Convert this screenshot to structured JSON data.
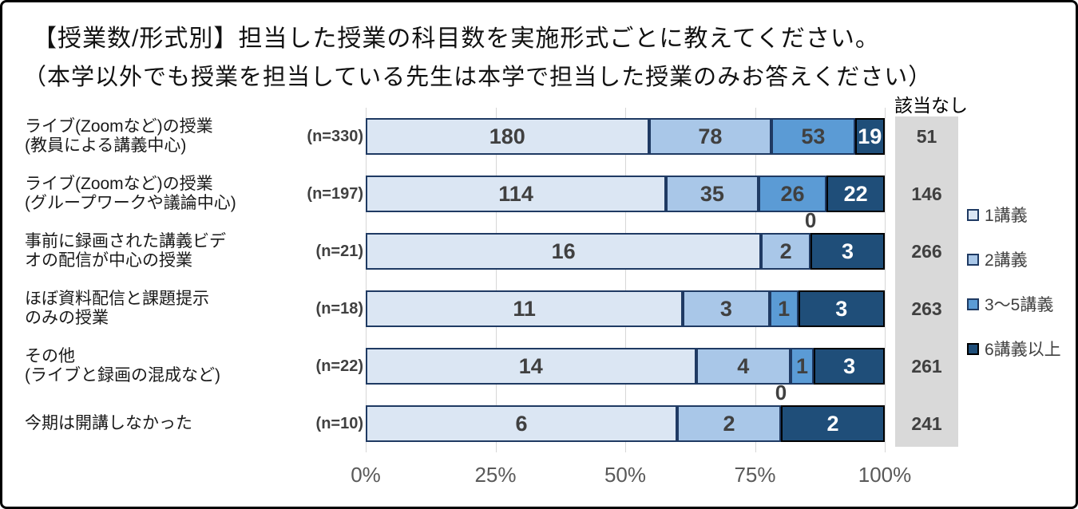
{
  "title": {
    "line1": "【授業数/形式別】担当した授業の科目数を実施形式ごとに教えてください。",
    "line2": "（本学以外でも授業を担当している先生は本学で担当した授業のみお答えください）"
  },
  "x_axis": {
    "ticks": [
      "0%",
      "25%",
      "50%",
      "75%",
      "100%"
    ],
    "range": [
      0,
      100
    ],
    "gridline_color": "#d6d6d6"
  },
  "chart_data": {
    "type": "bar",
    "stacked": true,
    "orientation": "horizontal",
    "value_mode": "counts shown as percent of row total",
    "categories": [
      [
        "ライブ(Zoomなど)の授業",
        "(教員による講義中心)"
      ],
      [
        "ライブ(Zoomなど)の授業",
        "(グループワークや議論中心)"
      ],
      [
        "事前に録画された講義ビデ",
        "オの配信が中心の授業"
      ],
      [
        "ほぼ資料配信と課題提示",
        "のみの授業"
      ],
      [
        "その他",
        "(ライブと録画の混成など)"
      ],
      [
        "今期は開講しなかった"
      ]
    ],
    "n_labels": [
      "(n=330)",
      "(n=197)",
      "(n=21)",
      "(n=18)",
      "(n=22)",
      "(n=10)"
    ],
    "totals": [
      330,
      197,
      21,
      18,
      22,
      10
    ],
    "series": [
      {
        "name": "1講義",
        "color": "#dbe6f3",
        "border": "#1f3a63",
        "label_color": "#404040",
        "values": [
          180,
          114,
          16,
          11,
          14,
          6
        ]
      },
      {
        "name": "2講義",
        "color": "#a9c7e8",
        "border": "#1f3a63",
        "label_color": "#404040",
        "values": [
          78,
          35,
          2,
          3,
          4,
          2
        ]
      },
      {
        "name": "3〜5講義",
        "color": "#5b9bd5",
        "border": "#1f3a63",
        "label_color": "#404040",
        "values": [
          53,
          26,
          0,
          1,
          1,
          0
        ]
      },
      {
        "name": "6講義以上",
        "color": "#1f4e79",
        "border": "#000000",
        "label_color": "#ffffff",
        "values": [
          19,
          22,
          3,
          3,
          3,
          2
        ]
      }
    ],
    "not_applicable": {
      "label": "該当なし",
      "band_color": "#d9d9d9",
      "values": [
        51,
        146,
        266,
        263,
        261,
        241
      ]
    }
  }
}
